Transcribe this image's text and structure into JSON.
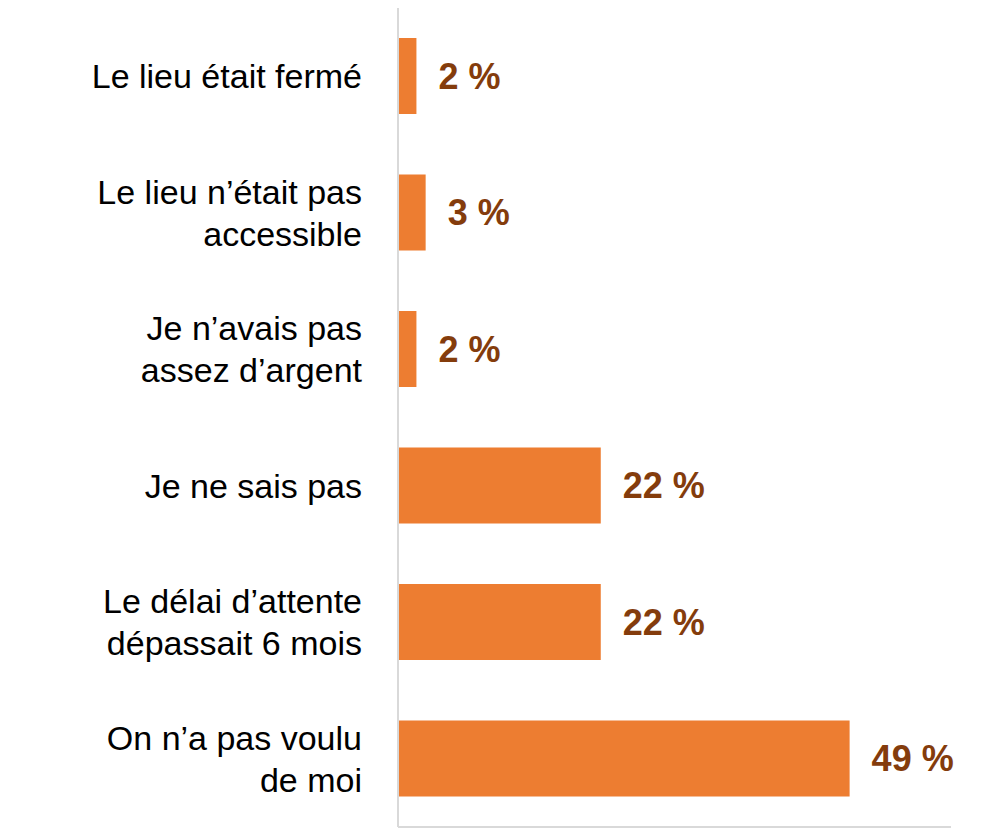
{
  "chart_data": {
    "type": "bar",
    "orientation": "horizontal",
    "categories": [
      "Le lieu était fermé",
      "Le lieu n’était pas\naccessible",
      "Je n’avais pas\nassez d’argent",
      "Je ne sais pas",
      "Le délai d’attente\ndépassait 6 mois",
      "On n’a pas voulu\nde moi"
    ],
    "values": [
      2,
      3,
      2,
      22,
      22,
      49
    ],
    "value_labels": [
      "2 %",
      "3 %",
      "2 %",
      "22 %",
      "22 %",
      "49 %"
    ],
    "color": "#ed7d31",
    "xlim": [
      0,
      60
    ],
    "data_labels": true,
    "tick_labels": "y",
    "grid": false
  }
}
